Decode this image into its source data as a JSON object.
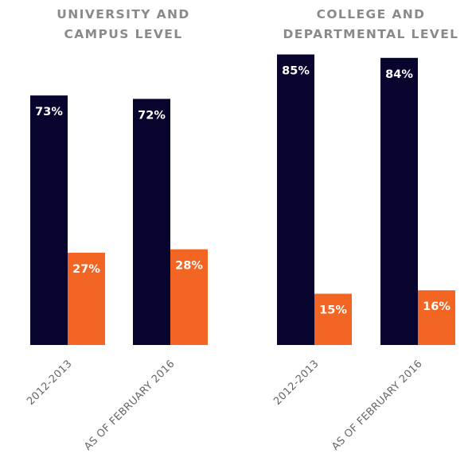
{
  "chart_data": [
    {
      "type": "bar",
      "title_lines": [
        "UNIVERSITY AND",
        "CAMPUS LEVEL"
      ],
      "categories": [
        "2012-2013",
        "AS OF FEBRUARY 2016"
      ],
      "series": [
        {
          "color": "#07052e",
          "values": [
            73,
            72
          ],
          "labels": [
            "73%",
            "72%"
          ]
        },
        {
          "color": "#f26522",
          "values": [
            27,
            28
          ],
          "labels": [
            "27%",
            "28%"
          ]
        }
      ],
      "ylim": [
        0,
        100
      ],
      "grid": false
    },
    {
      "type": "bar",
      "title_lines": [
        "COLLEGE AND",
        "DEPARTMENTAL LEVEL"
      ],
      "categories": [
        "2012-2013",
        "AS OF FEBRUARY 2016"
      ],
      "series": [
        {
          "color": "#07052e",
          "values": [
            85,
            84
          ],
          "labels": [
            "85%",
            "84%"
          ]
        },
        {
          "color": "#f26522",
          "values": [
            15,
            16
          ],
          "labels": [
            "15%",
            "16%"
          ]
        }
      ],
      "ylim": [
        0,
        100
      ],
      "grid": false
    }
  ]
}
